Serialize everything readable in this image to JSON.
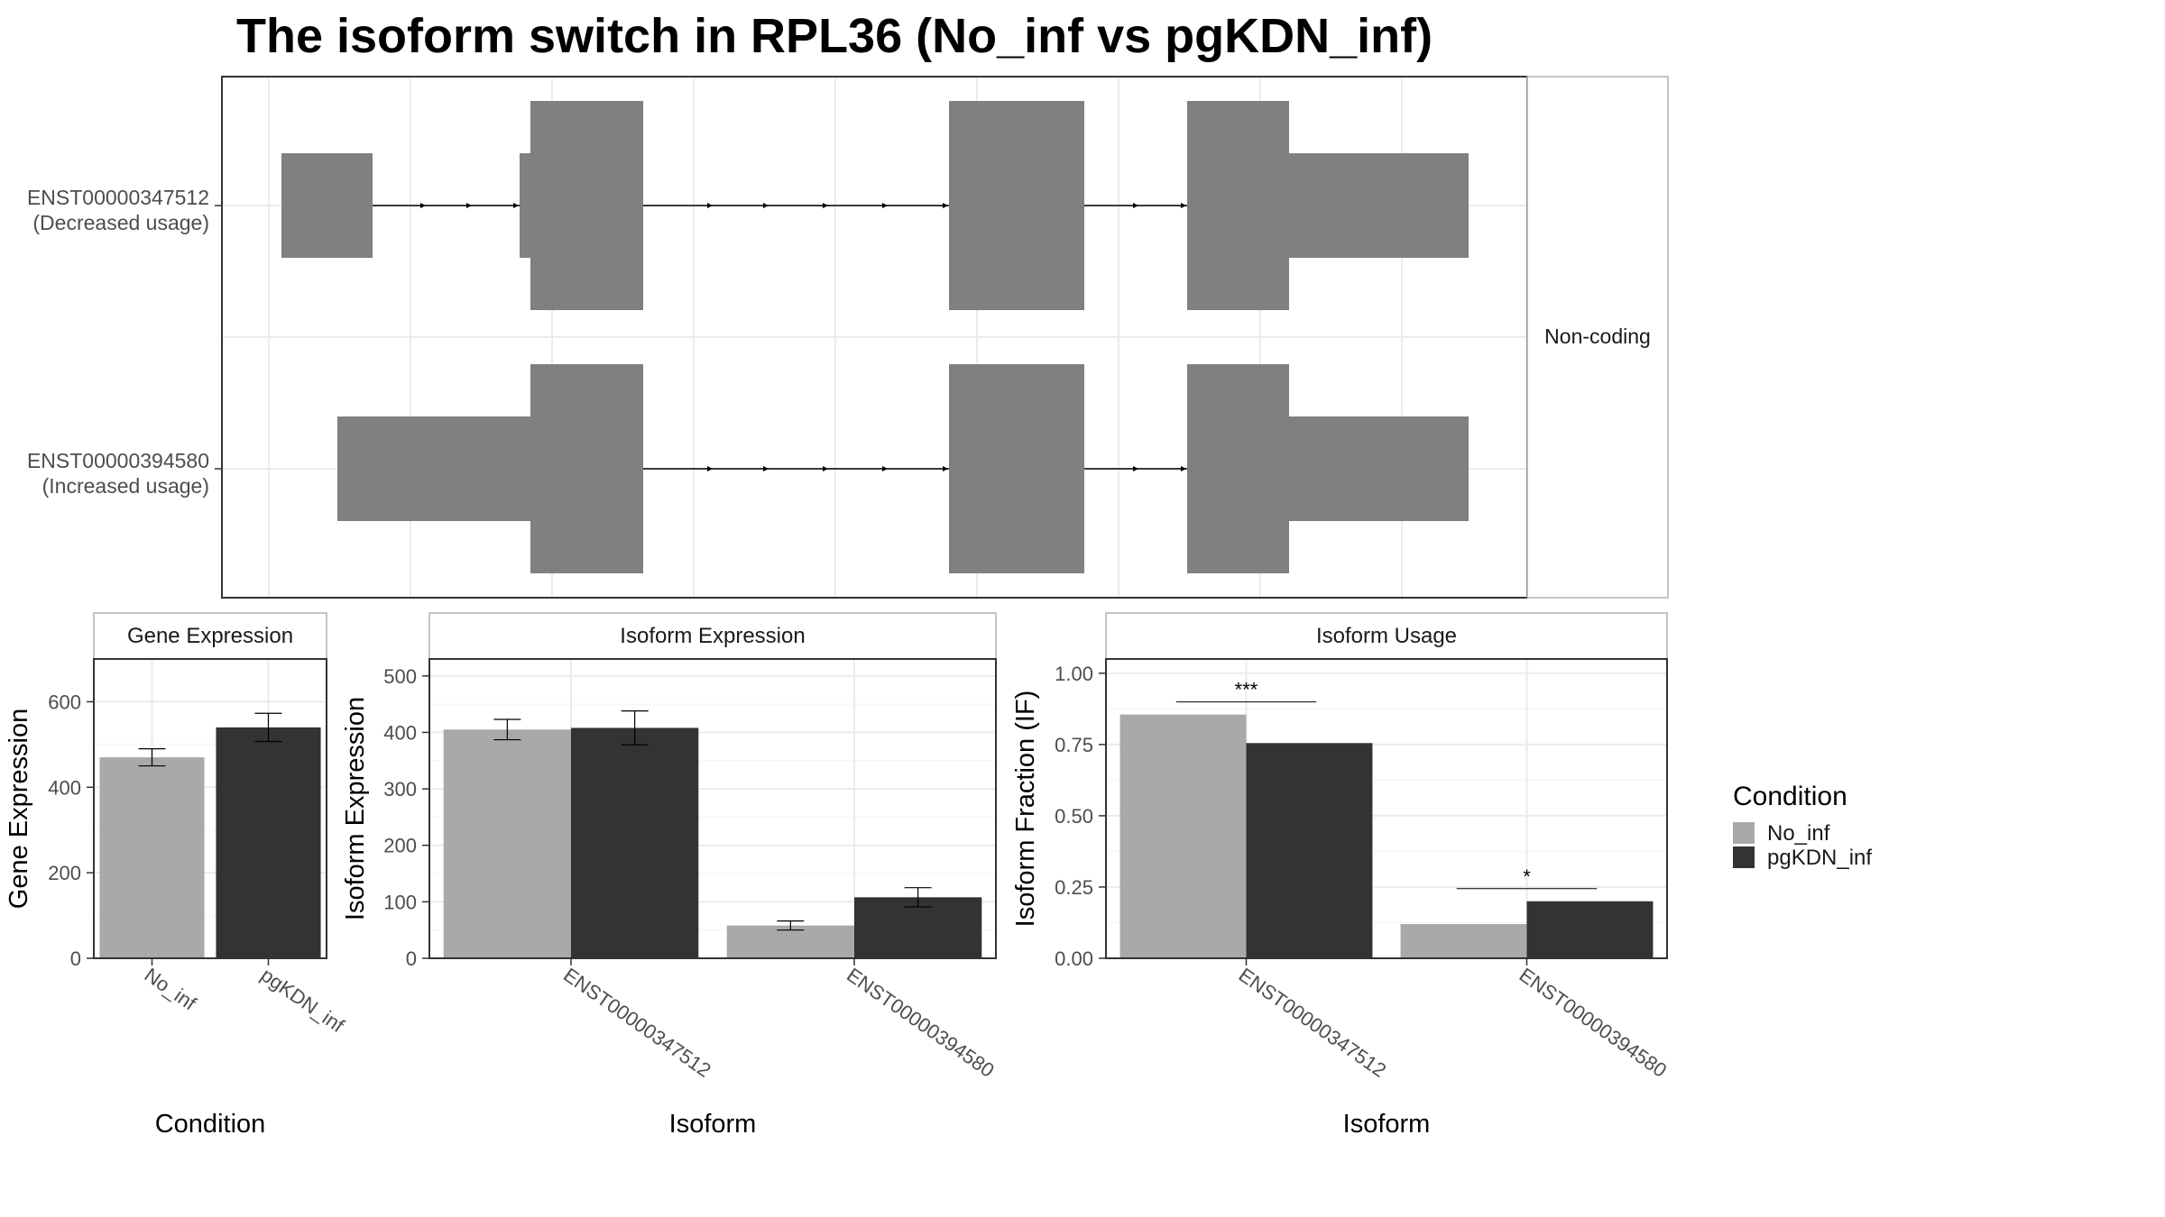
{
  "title": "The isoform switch in RPL36 (No_inf vs pgKDN_inf)",
  "colors": {
    "no_inf": "#a9a9a9",
    "pgkdn_inf": "#333333",
    "exon": "#808080",
    "grid": "#ebebeb",
    "panel_border": "#333333",
    "strip_border": "#b0b0b0"
  },
  "legend": {
    "title": "Condition",
    "items": [
      {
        "label": "No_inf",
        "color": "#a9a9a9"
      },
      {
        "label": "pgKDN_inf",
        "color": "#333333"
      }
    ]
  },
  "transcripts": {
    "strip_label": "Non-coding",
    "items": [
      {
        "id": "ENST00000347512",
        "usage": "(Decreased usage)"
      },
      {
        "id": "ENST00000394580",
        "usage": "(Increased usage)"
      }
    ]
  },
  "chart_data": [
    {
      "type": "bar",
      "panel": "Gene Expression",
      "xlabel": "Condition",
      "ylabel": "Gene Expression",
      "ylim": [
        0,
        700
      ],
      "yticks": [
        0,
        200,
        400,
        600
      ],
      "categories": [
        "No_inf",
        "pgKDN_inf"
      ],
      "values": [
        470,
        540
      ],
      "errors": [
        20,
        33
      ]
    },
    {
      "type": "bar",
      "panel": "Isoform Expression",
      "xlabel": "Isoform",
      "ylabel": "Isoform Expression",
      "ylim": [
        0,
        530
      ],
      "yticks": [
        0,
        100,
        200,
        300,
        400,
        500
      ],
      "categories": [
        "ENST00000347512",
        "ENST00000394580"
      ],
      "series": [
        {
          "name": "No_inf",
          "values": [
            405,
            58
          ],
          "errors": [
            18,
            8
          ]
        },
        {
          "name": "pgKDN_inf",
          "values": [
            408,
            108
          ],
          "errors": [
            30,
            17
          ]
        }
      ]
    },
    {
      "type": "bar",
      "panel": "Isoform Usage",
      "xlabel": "Isoform",
      "ylabel": "Isoform Fraction (IF)",
      "ylim": [
        0,
        1.05
      ],
      "yticks": [
        "0.00",
        "0.25",
        "0.50",
        "0.75",
        "1.00"
      ],
      "categories": [
        "ENST00000347512",
        "ENST00000394580"
      ],
      "series": [
        {
          "name": "No_inf",
          "values": [
            0.855,
            0.12
          ]
        },
        {
          "name": "pgKDN_inf",
          "values": [
            0.755,
            0.2
          ]
        }
      ],
      "significance": [
        "***",
        "*"
      ]
    }
  ]
}
